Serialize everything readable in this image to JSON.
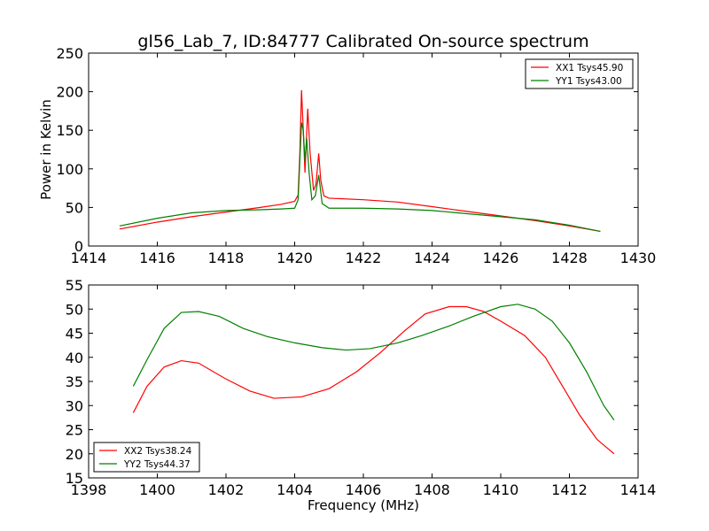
{
  "figure": {
    "title": "gl56_Lab_7, ID:84777 Calibrated On-source spectrum"
  },
  "chart_data": [
    {
      "type": "line",
      "title": "gl56_Lab_7, ID:84777 Calibrated On-source spectrum",
      "xlabel": "",
      "ylabel": "Power in Kelvin",
      "xlim": [
        1414,
        1430
      ],
      "ylim": [
        0,
        250
      ],
      "xticks": [
        "1414",
        "1416",
        "1418",
        "1420",
        "1422",
        "1424",
        "1426",
        "1428",
        "1430"
      ],
      "yticks": [
        "0",
        "50",
        "100",
        "150",
        "200",
        "250"
      ],
      "legend_position": "top-right",
      "grid": false,
      "series": [
        {
          "name": "XX1 Tsys45.90",
          "color": "#ff0000",
          "points": [
            [
              1414.9,
              22
            ],
            [
              1416,
              31
            ],
            [
              1417,
              38
            ],
            [
              1418,
              44
            ],
            [
              1419,
              50
            ],
            [
              1419.6,
              54
            ],
            [
              1420.0,
              58
            ],
            [
              1420.1,
              66
            ],
            [
              1420.15,
              120
            ],
            [
              1420.2,
              202
            ],
            [
              1420.25,
              150
            ],
            [
              1420.3,
              95
            ],
            [
              1420.38,
              178
            ],
            [
              1420.45,
              120
            ],
            [
              1420.55,
              72
            ],
            [
              1420.62,
              80
            ],
            [
              1420.7,
              120
            ],
            [
              1420.76,
              85
            ],
            [
              1420.85,
              65
            ],
            [
              1421,
              62
            ],
            [
              1422,
              60
            ],
            [
              1423,
              57
            ],
            [
              1424,
              51
            ],
            [
              1425,
              45
            ],
            [
              1426,
              39
            ],
            [
              1427,
              33
            ],
            [
              1428,
              26
            ],
            [
              1428.9,
              19
            ]
          ]
        },
        {
          "name": "YY1 Tsys43.00",
          "color": "#008000",
          "points": [
            [
              1414.9,
              26
            ],
            [
              1416,
              36
            ],
            [
              1417,
              43
            ],
            [
              1418,
              46
            ],
            [
              1419,
              47
            ],
            [
              1419.6,
              48
            ],
            [
              1420.0,
              49
            ],
            [
              1420.1,
              60
            ],
            [
              1420.15,
              110
            ],
            [
              1420.2,
              160
            ],
            [
              1420.25,
              150
            ],
            [
              1420.3,
              110
            ],
            [
              1420.35,
              140
            ],
            [
              1420.42,
              95
            ],
            [
              1420.5,
              60
            ],
            [
              1420.6,
              65
            ],
            [
              1420.7,
              92
            ],
            [
              1420.8,
              55
            ],
            [
              1421,
              49
            ],
            [
              1422,
              49
            ],
            [
              1423,
              48
            ],
            [
              1424,
              46
            ],
            [
              1425,
              42
            ],
            [
              1426,
              38
            ],
            [
              1427,
              34
            ],
            [
              1428,
              27
            ],
            [
              1428.9,
              19
            ]
          ]
        }
      ]
    },
    {
      "type": "line",
      "title": "",
      "xlabel": "Frequency (MHz)",
      "ylabel": "",
      "xlim": [
        1398,
        1414
      ],
      "ylim": [
        15,
        55
      ],
      "xticks": [
        "1398",
        "1400",
        "1402",
        "1404",
        "1406",
        "1408",
        "1410",
        "1412",
        "1414"
      ],
      "yticks": [
        "15",
        "20",
        "25",
        "30",
        "35",
        "40",
        "45",
        "50",
        "55"
      ],
      "legend_position": "bottom-left",
      "grid": false,
      "series": [
        {
          "name": "XX2 Tsys38.24",
          "color": "#ff0000",
          "points": [
            [
              1399.3,
              28.5
            ],
            [
              1399.7,
              34
            ],
            [
              1400.2,
              38
            ],
            [
              1400.7,
              39.3
            ],
            [
              1401.2,
              38.8
            ],
            [
              1402,
              35.5
            ],
            [
              1402.7,
              33
            ],
            [
              1403.4,
              31.5
            ],
            [
              1404.2,
              31.8
            ],
            [
              1405,
              33.5
            ],
            [
              1405.8,
              37
            ],
            [
              1406.5,
              41
            ],
            [
              1407.2,
              45.5
            ],
            [
              1407.8,
              49
            ],
            [
              1408.5,
              50.5
            ],
            [
              1409,
              50.5
            ],
            [
              1409.5,
              49.5
            ],
            [
              1410,
              47.5
            ],
            [
              1410.7,
              44.5
            ],
            [
              1411.3,
              40
            ],
            [
              1411.8,
              34
            ],
            [
              1412.3,
              28
            ],
            [
              1412.8,
              23
            ],
            [
              1413.3,
              20
            ]
          ]
        },
        {
          "name": "YY2 Tsys44.37",
          "color": "#008000",
          "points": [
            [
              1399.3,
              34
            ],
            [
              1399.7,
              39.5
            ],
            [
              1400.2,
              46
            ],
            [
              1400.7,
              49.3
            ],
            [
              1401.2,
              49.5
            ],
            [
              1401.8,
              48.5
            ],
            [
              1402.5,
              46
            ],
            [
              1403.2,
              44.3
            ],
            [
              1404,
              43
            ],
            [
              1404.8,
              42
            ],
            [
              1405.5,
              41.5
            ],
            [
              1406.2,
              41.8
            ],
            [
              1407,
              43
            ],
            [
              1407.7,
              44.5
            ],
            [
              1408.5,
              46.5
            ],
            [
              1409.2,
              48.5
            ],
            [
              1410,
              50.5
            ],
            [
              1410.5,
              51
            ],
            [
              1411,
              50
            ],
            [
              1411.5,
              47.5
            ],
            [
              1412,
              43
            ],
            [
              1412.5,
              37
            ],
            [
              1413,
              30
            ],
            [
              1413.3,
              27
            ]
          ]
        }
      ]
    }
  ]
}
